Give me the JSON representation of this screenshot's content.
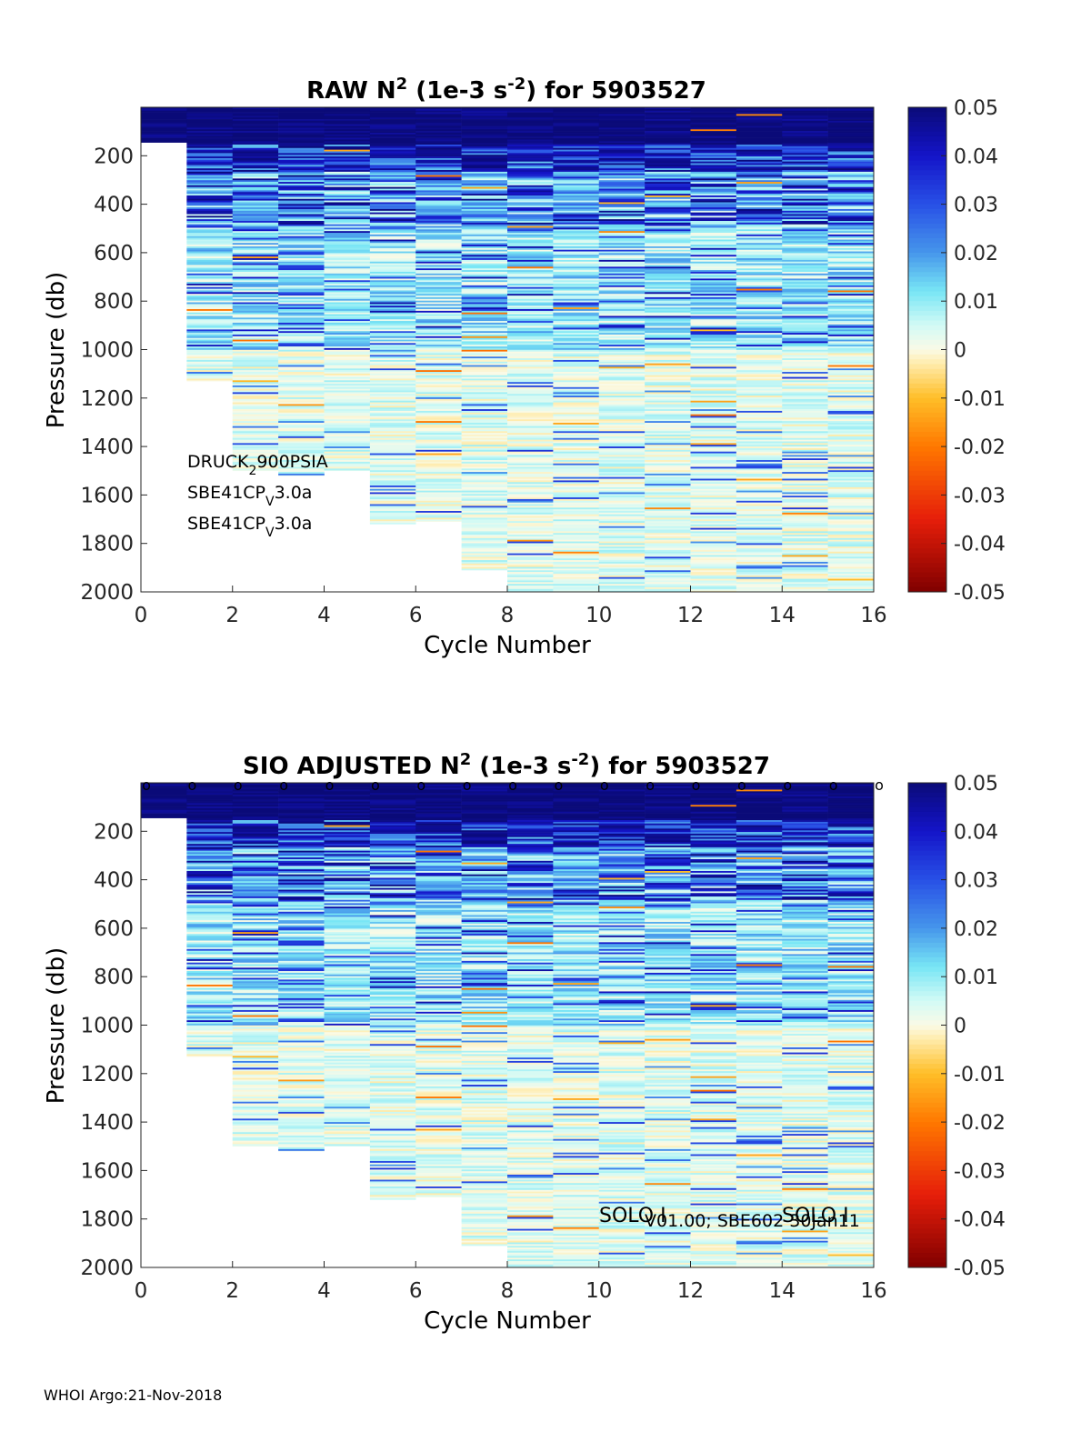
{
  "footer": "WHOI Argo:21-Nov-2018",
  "chart_data": [
    {
      "type": "heatmap",
      "title_prefix": "RAW N",
      "title_sup": "2",
      "title_mid": " (1e-3 s",
      "title_sup2": "-2",
      "title_suffix": ") for 5903527",
      "xlabel": "Cycle Number",
      "ylabel": "Pressure (db)",
      "xlim": [
        0,
        16
      ],
      "ylim": [
        0,
        2000
      ],
      "y_reversed": true,
      "x_ticks": [
        0,
        2,
        4,
        6,
        8,
        10,
        12,
        14,
        16
      ],
      "y_ticks": [
        200,
        400,
        600,
        800,
        1000,
        1200,
        1400,
        1600,
        1800,
        2000
      ],
      "colorbar": {
        "min": -0.05,
        "max": 0.05,
        "ticks": [
          "0.05",
          "0.04",
          "0.03",
          "0.02",
          "0.01",
          "0",
          "-0.01",
          "-0.02",
          "-0.03",
          "-0.04",
          "-0.05"
        ]
      },
      "cycles": [
        0,
        1,
        2,
        3,
        4,
        5,
        6,
        7,
        8,
        9,
        10,
        11,
        12,
        13,
        14,
        15
      ],
      "max_pressure": [
        145,
        1130,
        1500,
        1520,
        1500,
        1720,
        1710,
        1910,
        2000,
        2000,
        2000,
        2000,
        2000,
        2000,
        2000,
        2000
      ],
      "annotations": [
        {
          "base": "DRUCK",
          "sub": "2",
          "rest": "900PSIA"
        },
        {
          "base": "SBE41CP",
          "sub": "V",
          "rest": "3.0a"
        },
        {
          "base": "SBE41CP",
          "sub": "V",
          "rest": "3.0a"
        }
      ]
    },
    {
      "type": "heatmap",
      "title_prefix": "SIO  ADJUSTED N",
      "title_sup": "2",
      "title_mid": " (1e-3 s",
      "title_sup2": "-2",
      "title_suffix": ") for 5903527",
      "xlabel": "Cycle Number",
      "ylabel": "Pressure (db)",
      "xlim": [
        0,
        16
      ],
      "ylim": [
        0,
        2000
      ],
      "y_reversed": true,
      "x_ticks": [
        0,
        2,
        4,
        6,
        8,
        10,
        12,
        14,
        16
      ],
      "y_ticks": [
        200,
        400,
        600,
        800,
        1000,
        1200,
        1400,
        1600,
        1800,
        2000
      ],
      "colorbar": {
        "min": -0.05,
        "max": 0.05,
        "ticks": [
          "0.05",
          "0.04",
          "0.03",
          "0.02",
          "0.01",
          "0",
          "-0.01",
          "-0.02",
          "-0.03",
          "-0.04",
          "-0.05"
        ]
      },
      "cycles": [
        0,
        1,
        2,
        3,
        4,
        5,
        6,
        7,
        8,
        9,
        10,
        11,
        12,
        13,
        14,
        15
      ],
      "max_pressure": [
        145,
        1130,
        1500,
        1520,
        1500,
        1720,
        1710,
        1910,
        2000,
        2000,
        2000,
        2000,
        2000,
        2000,
        2000,
        2000
      ],
      "qc_marker_label": "o",
      "qc_marker_x": [
        0,
        1,
        2,
        3,
        4,
        5,
        6,
        7,
        8,
        9,
        10,
        11,
        12,
        13,
        14,
        15,
        16
      ],
      "annotations": [
        {
          "text": "SOLO I"
        },
        {
          "text": "V01.00; SBE602 30Jan11"
        },
        {
          "text": "SOLO I"
        }
      ]
    }
  ]
}
